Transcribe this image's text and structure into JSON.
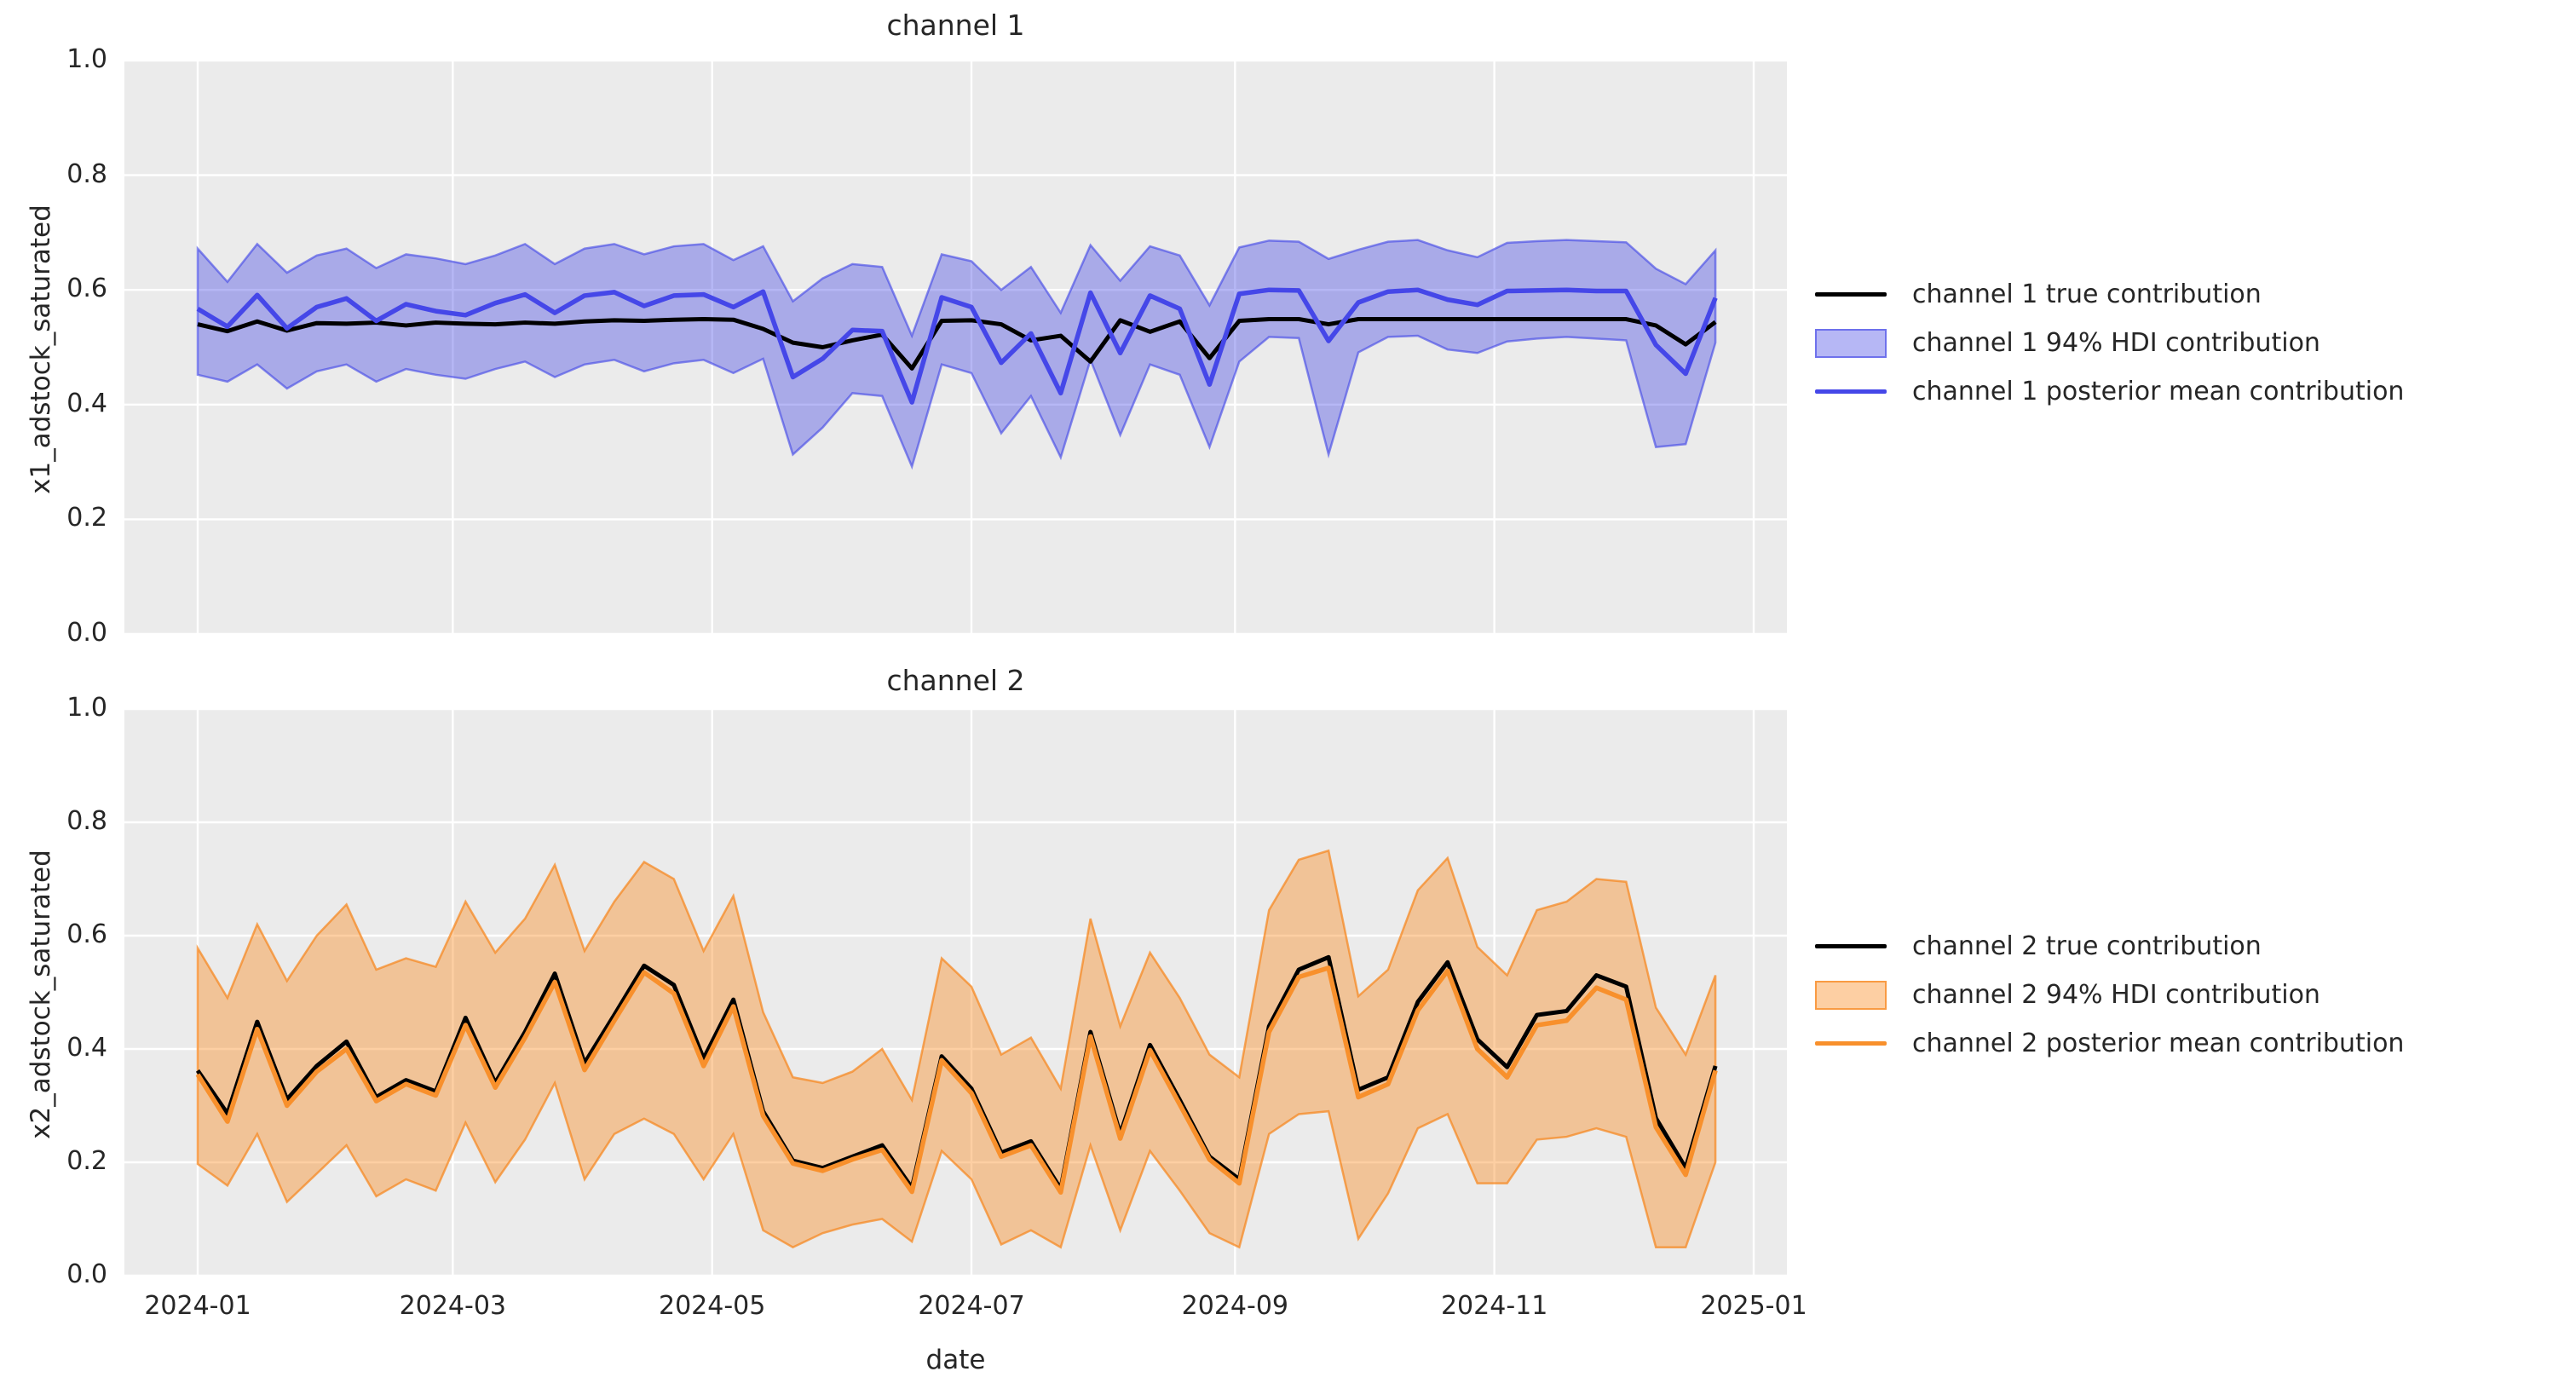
{
  "figure": {
    "background": "#ffffff",
    "plot_background": "#ebebeb",
    "grid_color": "#ffffff",
    "text_color": "#262626",
    "true_line_color": "#000000",
    "channel1_color": "#4547e8",
    "channel1_band_fill": "rgba(62,66,230,0.38)",
    "channel1_band_edge": "rgba(62,66,230,0.60)",
    "channel2_color": "#f8902c",
    "channel2_band_fill": "rgba(250,140,35,0.42)",
    "channel2_band_edge": "rgba(247,133,26,0.70)"
  },
  "xlabel": "date",
  "x_tick_labels": [
    "2024-01",
    "2024-03",
    "2024-05",
    "2024-07",
    "2024-09",
    "2024-11",
    "2025-01"
  ],
  "y_tick_labels": [
    "0.0",
    "0.2",
    "0.4",
    "0.6",
    "0.8",
    "1.0"
  ],
  "chart_data": [
    {
      "type": "line",
      "title": "channel 1",
      "ylabel": "x1_adstock_saturated",
      "xlabel": "date",
      "ylim": [
        0.0,
        1.0
      ],
      "x_start": "2024-01-01",
      "x_step_days": 7,
      "x_tick_labels": [
        "2024-01",
        "2024-03",
        "2024-05",
        "2024-07",
        "2024-09",
        "2024-11",
        "2025-01"
      ],
      "grid": true,
      "legend_position": "right-of-axes",
      "legend": {
        "true_label": "channel 1 true contribution",
        "hdi_label": "channel 1 94% HDI contribution",
        "mean_label": "channel 1 posterior mean contribution"
      },
      "series": [
        {
          "name": "channel 1 true contribution",
          "style": "line",
          "color": "#000000",
          "values": [
            0.54,
            0.528,
            0.545,
            0.529,
            0.542,
            0.541,
            0.543,
            0.538,
            0.543,
            0.541,
            0.54,
            0.543,
            0.541,
            0.545,
            0.547,
            0.546,
            0.548,
            0.549,
            0.548,
            0.532,
            0.508,
            0.5,
            0.512,
            0.522,
            0.463,
            0.546,
            0.547,
            0.54,
            0.512,
            0.52,
            0.475,
            0.547,
            0.527,
            0.545,
            0.481,
            0.546,
            0.549,
            0.549,
            0.54,
            0.549,
            0.549,
            0.549,
            0.549,
            0.549,
            0.549,
            0.549,
            0.549,
            0.549,
            0.549,
            0.538,
            0.505,
            0.544
          ]
        },
        {
          "name": "channel 1 94% HDI contribution",
          "style": "band",
          "low": [
            0.452,
            0.44,
            0.47,
            0.428,
            0.458,
            0.47,
            0.44,
            0.462,
            0.452,
            0.445,
            0.462,
            0.475,
            0.448,
            0.47,
            0.478,
            0.458,
            0.472,
            0.478,
            0.455,
            0.48,
            0.313,
            0.36,
            0.42,
            0.415,
            0.292,
            0.47,
            0.455,
            0.35,
            0.415,
            0.308,
            0.478,
            0.347,
            0.47,
            0.452,
            0.326,
            0.475,
            0.518,
            0.516,
            0.313,
            0.491,
            0.518,
            0.52,
            0.496,
            0.49,
            0.51,
            0.515,
            0.518,
            0.515,
            0.512,
            0.326,
            0.331,
            0.508
          ],
          "high": [
            0.672,
            0.614,
            0.68,
            0.63,
            0.66,
            0.672,
            0.638,
            0.662,
            0.655,
            0.645,
            0.66,
            0.68,
            0.645,
            0.672,
            0.68,
            0.662,
            0.676,
            0.68,
            0.652,
            0.676,
            0.58,
            0.62,
            0.645,
            0.64,
            0.52,
            0.662,
            0.65,
            0.6,
            0.64,
            0.56,
            0.678,
            0.616,
            0.676,
            0.66,
            0.573,
            0.674,
            0.686,
            0.684,
            0.654,
            0.67,
            0.684,
            0.687,
            0.669,
            0.657,
            0.682,
            0.685,
            0.687,
            0.685,
            0.683,
            0.637,
            0.61,
            0.669
          ]
        },
        {
          "name": "channel 1 posterior mean contribution",
          "style": "line",
          "color": "#4547e8",
          "values": [
            0.567,
            0.536,
            0.591,
            0.533,
            0.57,
            0.585,
            0.546,
            0.575,
            0.563,
            0.556,
            0.577,
            0.592,
            0.56,
            0.59,
            0.596,
            0.572,
            0.59,
            0.592,
            0.57,
            0.597,
            0.448,
            0.48,
            0.53,
            0.528,
            0.404,
            0.587,
            0.57,
            0.473,
            0.524,
            0.42,
            0.595,
            0.49,
            0.59,
            0.567,
            0.435,
            0.593,
            0.6,
            0.599,
            0.511,
            0.578,
            0.597,
            0.6,
            0.583,
            0.574,
            0.598,
            0.599,
            0.6,
            0.598,
            0.598,
            0.504,
            0.454,
            0.586
          ]
        }
      ]
    },
    {
      "type": "line",
      "title": "channel 2",
      "ylabel": "x2_adstock_saturated",
      "xlabel": "date",
      "ylim": [
        0.0,
        1.0
      ],
      "x_start": "2024-01-01",
      "x_step_days": 7,
      "x_tick_labels": [
        "2024-01",
        "2024-03",
        "2024-05",
        "2024-07",
        "2024-09",
        "2024-11",
        "2025-01"
      ],
      "grid": true,
      "legend_position": "right-of-axes",
      "legend": {
        "true_label": "channel 2 true contribution",
        "hdi_label": "channel 2 94% HDI contribution",
        "mean_label": "channel 2 posterior mean contribution"
      },
      "series": [
        {
          "name": "channel 2 true contribution",
          "style": "line",
          "color": "#000000",
          "values": [
            0.362,
            0.286,
            0.448,
            0.311,
            0.37,
            0.413,
            0.315,
            0.345,
            0.325,
            0.455,
            0.34,
            0.43,
            0.533,
            0.375,
            0.46,
            0.547,
            0.513,
            0.383,
            0.487,
            0.29,
            0.203,
            0.19,
            0.21,
            0.23,
            0.155,
            0.387,
            0.33,
            0.217,
            0.237,
            0.153,
            0.43,
            0.25,
            0.407,
            0.31,
            0.21,
            0.17,
            0.44,
            0.54,
            0.562,
            0.328,
            0.35,
            0.483,
            0.553,
            0.417,
            0.368,
            0.46,
            0.467,
            0.53,
            0.51,
            0.278,
            0.19,
            0.37
          ]
        },
        {
          "name": "channel 2 94% HDI contribution",
          "style": "band",
          "low": [
            0.197,
            0.159,
            0.25,
            0.13,
            0.18,
            0.23,
            0.14,
            0.17,
            0.15,
            0.27,
            0.165,
            0.24,
            0.34,
            0.17,
            0.25,
            0.277,
            0.25,
            0.17,
            0.25,
            0.08,
            0.05,
            0.075,
            0.09,
            0.1,
            0.06,
            0.22,
            0.17,
            0.055,
            0.08,
            0.05,
            0.23,
            0.08,
            0.22,
            0.15,
            0.075,
            0.05,
            0.25,
            0.285,
            0.29,
            0.065,
            0.145,
            0.26,
            0.285,
            0.163,
            0.163,
            0.24,
            0.245,
            0.26,
            0.245,
            0.05,
            0.05,
            0.2
          ],
          "high": [
            0.578,
            0.49,
            0.62,
            0.52,
            0.6,
            0.655,
            0.54,
            0.56,
            0.545,
            0.66,
            0.57,
            0.63,
            0.725,
            0.573,
            0.66,
            0.73,
            0.7,
            0.573,
            0.67,
            0.465,
            0.35,
            0.34,
            0.36,
            0.4,
            0.31,
            0.56,
            0.51,
            0.39,
            0.42,
            0.33,
            0.63,
            0.44,
            0.57,
            0.49,
            0.39,
            0.35,
            0.645,
            0.734,
            0.75,
            0.493,
            0.54,
            0.68,
            0.737,
            0.58,
            0.53,
            0.645,
            0.66,
            0.7,
            0.695,
            0.473,
            0.39,
            0.53
          ]
        },
        {
          "name": "channel 2 posterior mean contribution",
          "style": "line",
          "color": "#f8902c",
          "values": [
            0.355,
            0.272,
            0.435,
            0.3,
            0.36,
            0.4,
            0.308,
            0.338,
            0.318,
            0.442,
            0.332,
            0.42,
            0.518,
            0.363,
            0.45,
            0.535,
            0.498,
            0.37,
            0.475,
            0.282,
            0.198,
            0.185,
            0.205,
            0.222,
            0.148,
            0.38,
            0.322,
            0.21,
            0.23,
            0.147,
            0.422,
            0.242,
            0.398,
            0.302,
            0.205,
            0.163,
            0.43,
            0.527,
            0.543,
            0.315,
            0.338,
            0.468,
            0.538,
            0.4,
            0.35,
            0.442,
            0.45,
            0.508,
            0.487,
            0.262,
            0.178,
            0.362
          ]
        }
      ]
    }
  ]
}
